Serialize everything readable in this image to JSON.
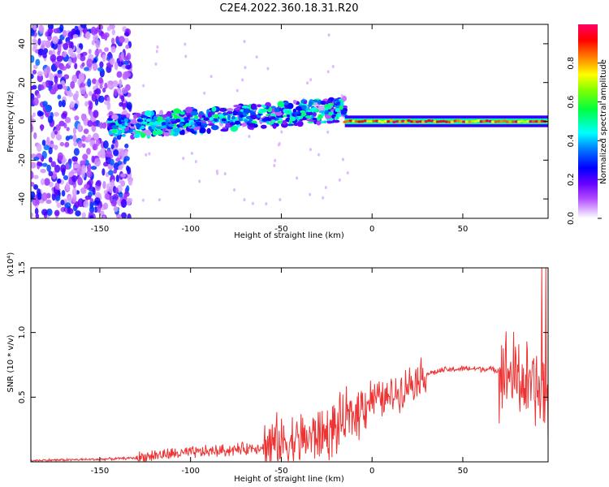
{
  "figure_title": "C2E4.2022.360.18.31.R20",
  "chart_data": [
    {
      "type": "heatmap",
      "title": "",
      "xlabel": "Height of straight line (km)",
      "ylabel": "Frequency (Hz)",
      "xlim": [
        -188,
        97
      ],
      "ylim": [
        -50,
        50
      ],
      "xticks": [
        -150,
        -100,
        -50,
        0,
        50
      ],
      "yticks": [
        -40,
        -20,
        0,
        20,
        40
      ],
      "colorbar": {
        "label": "Normalized spectral amplitude",
        "range": [
          0.0,
          1.0
        ],
        "ticks": [
          "0.0",
          "0.2",
          "0.4",
          "0.6",
          "0.8"
        ],
        "colors": [
          "#ffffff",
          "#e6ccff",
          "#b34dff",
          "#6600ff",
          "#0000ff",
          "#00ffff",
          "#00ff00",
          "#ffff00",
          "#ff8000",
          "#ff0000",
          "#ff0066"
        ]
      },
      "features": [
        {
          "name": "scattered noise",
          "x_range": [
            -188,
            -133
          ],
          "freq_range": [
            -50,
            50
          ],
          "amplitude": [
            0.05,
            0.35
          ]
        },
        {
          "name": "wandering band",
          "x_range": [
            -145,
            -15
          ],
          "freq_center_start": -3,
          "freq_center_end": 6,
          "amplitude": [
            0.2,
            0.55
          ]
        },
        {
          "name": "steady line",
          "x_range": [
            -15,
            97
          ],
          "freq_center": 0,
          "amplitude": [
            0.7,
            1.0
          ]
        }
      ]
    },
    {
      "type": "line",
      "title": "",
      "xlabel": "Height of straight line (km)",
      "ylabel": "SNR (10 * v/v)",
      "scale_label": "(x10⁴)",
      "xlim": [
        -188,
        97
      ],
      "ylim": [
        0,
        1.5
      ],
      "xticks": [
        -150,
        -100,
        -50,
        0,
        50
      ],
      "yticks": [
        "0.5",
        "1.0",
        "1.5"
      ],
      "line_color": "#ee3333",
      "x": [
        -188,
        -170,
        -150,
        -140,
        -130,
        -120,
        -110,
        -100,
        -90,
        -80,
        -70,
        -60,
        -50,
        -40,
        -30,
        -25,
        -20,
        -15,
        -10,
        -5,
        0,
        5,
        10,
        15,
        20,
        25,
        30,
        40,
        50,
        60,
        70,
        75,
        80,
        85,
        88,
        90,
        92,
        94,
        96
      ],
      "values": [
        0.01,
        0.015,
        0.02,
        0.025,
        0.03,
        0.05,
        0.06,
        0.07,
        0.08,
        0.09,
        0.1,
        0.12,
        0.15,
        0.17,
        0.2,
        0.22,
        0.26,
        0.32,
        0.36,
        0.45,
        0.5,
        0.48,
        0.5,
        0.55,
        0.6,
        0.65,
        0.68,
        0.71,
        0.72,
        0.72,
        0.71,
        0.68,
        0.65,
        0.6,
        0.55,
        0.6,
        0.5,
        0.65,
        0.45
      ]
    }
  ]
}
